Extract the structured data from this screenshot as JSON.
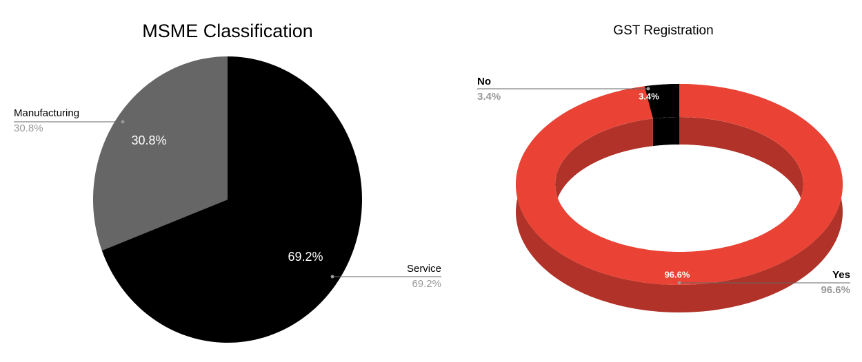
{
  "chart_data": [
    {
      "type": "pie",
      "title": "MSME Classification",
      "categories": [
        "Manufacturing",
        "Service"
      ],
      "values": [
        30.8,
        69.2
      ],
      "value_labels": [
        "30.8%",
        "69.2%"
      ],
      "colors": [
        "#666666",
        "#000000"
      ]
    },
    {
      "type": "donut3d",
      "title": "GST Registration",
      "categories": [
        "No",
        "Yes"
      ],
      "values": [
        3.4,
        96.6
      ],
      "value_labels": [
        "3.4%",
        "96.6%"
      ],
      "colors": [
        "#000000",
        "#ea4335"
      ]
    }
  ]
}
